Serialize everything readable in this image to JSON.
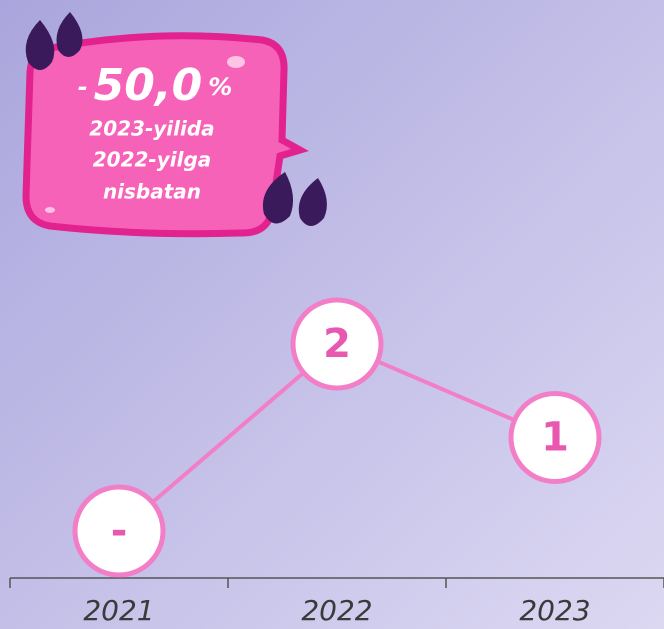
{
  "chart_data": {
    "type": "line",
    "badge": {
      "sign": "-",
      "number": "50,0",
      "unit": "%",
      "lines": [
        "2023-yilida",
        "2022-yilga",
        "nisbatan"
      ]
    },
    "categories": [
      "2021",
      "2022",
      "2023"
    ],
    "series": [
      {
        "color": "#f27ec8",
        "values": [
          0,
          2,
          1
        ],
        "value_labels": [
          "-",
          "2",
          "1"
        ]
      }
    ],
    "ylim": [
      0,
      2
    ]
  }
}
